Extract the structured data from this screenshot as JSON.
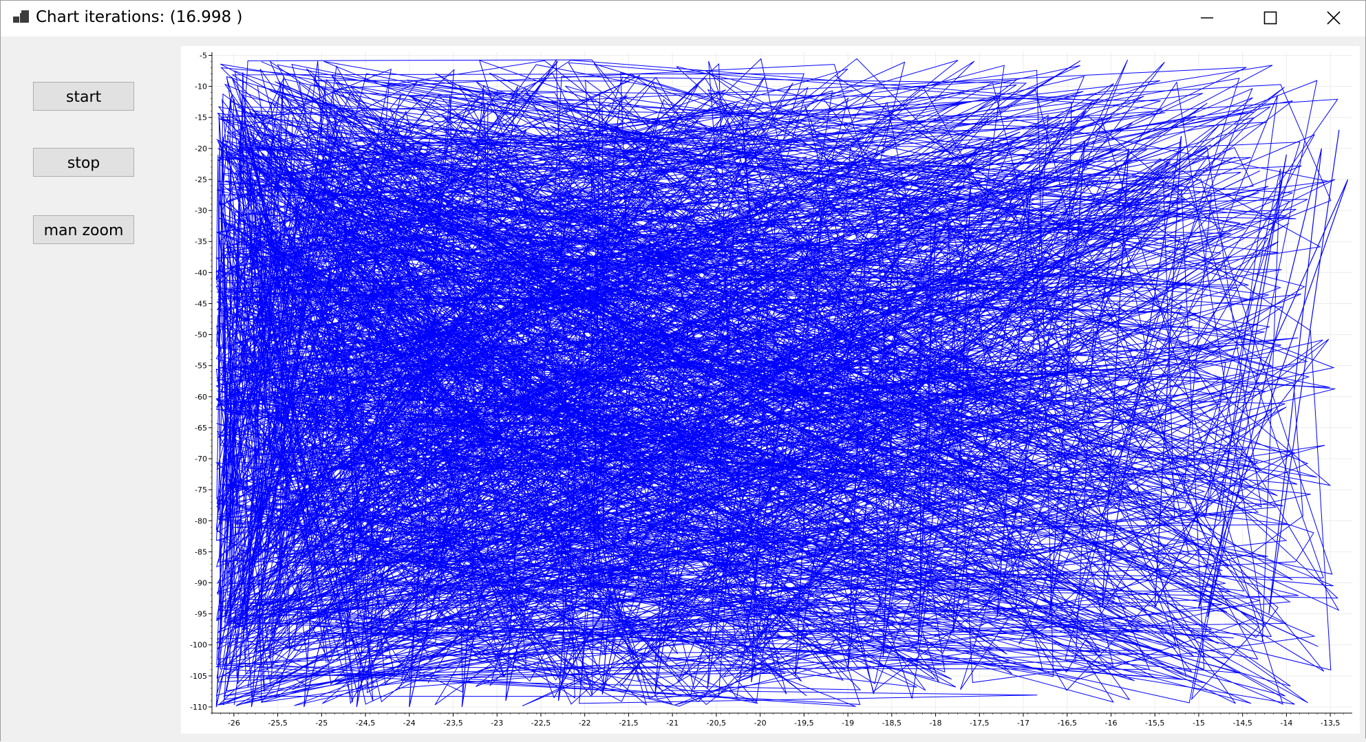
{
  "window": {
    "title": "Chart iterations: (16.998 )",
    "icons": {
      "app": "app-window-icon",
      "minimize": "minimize-icon",
      "maximize": "maximize-icon",
      "close": "close-icon"
    }
  },
  "sidebar": {
    "start_label": "start",
    "stop_label": "stop",
    "zoom_label": "man zoom"
  },
  "chart_data": {
    "type": "line",
    "title": "",
    "xlabel": "",
    "ylabel": "",
    "xlim": [
      -26.25,
      -13.25
    ],
    "ylim": [
      -111,
      -4.5
    ],
    "grid": true,
    "series_color": "#0000ff",
    "x_ticks": [
      -26,
      -25.5,
      -25,
      -24.5,
      -24,
      -23.5,
      -23,
      -22.5,
      -22,
      -21.5,
      -21,
      -20.5,
      -20,
      -19.5,
      -19,
      -18.5,
      -18,
      -17.5,
      -17,
      -16.5,
      -16,
      -15.5,
      -15,
      -14.5,
      -14,
      -13.5
    ],
    "x_tick_labels": [
      "-26",
      "-25,5",
      "-25",
      "-24,5",
      "-24",
      "-23,5",
      "-23",
      "-22,5",
      "-22",
      "-21,5",
      "-21",
      "-20,5",
      "-20",
      "-19,5",
      "-19",
      "-18,5",
      "-18",
      "-17,5",
      "-17",
      "-16,5",
      "-16",
      "-15,5",
      "-15",
      "-14,5",
      "-14",
      "-13,5"
    ],
    "y_ticks": [
      -5,
      -10,
      -15,
      -20,
      -25,
      -30,
      -35,
      -40,
      -45,
      -50,
      -55,
      -60,
      -65,
      -70,
      -75,
      -80,
      -85,
      -90,
      -95,
      -100,
      -105,
      -110
    ],
    "y_tick_labels": [
      "-5",
      "-10",
      "-15",
      "-20",
      "-25",
      "-30",
      "-35",
      "-40",
      "-45",
      "-50",
      "-55",
      "-60",
      "-65",
      "-70",
      "-75",
      "-80",
      "-85",
      "-90",
      "-95",
      "-100",
      "-105",
      "-110"
    ],
    "series": [
      {
        "points": [
          [
            -13.4,
            -17
          ],
          [
            -14.2,
            -95
          ],
          [
            -13.6,
            -20
          ],
          [
            -14.9,
            -95.5
          ],
          [
            -14.0,
            -21
          ],
          [
            -15.0,
            -94
          ],
          [
            -13.3,
            -25
          ],
          [
            -15.5,
            -94
          ],
          [
            -15.2,
            -18
          ],
          [
            -16.1,
            -94
          ],
          [
            -15.8,
            -20
          ],
          [
            -16.7,
            -95
          ],
          [
            -16.3,
            -19
          ],
          [
            -17.3,
            -95.5
          ],
          [
            -16.9,
            -24
          ],
          [
            -17.8,
            -98
          ],
          [
            -17.6,
            -26
          ],
          [
            -18.2,
            -100
          ],
          [
            -18.0,
            -32
          ],
          [
            -18.6,
            -102
          ],
          [
            -18.4,
            -28
          ],
          [
            -19.0,
            -104
          ],
          [
            -18.8,
            -36
          ],
          [
            -19.6,
            -105
          ],
          [
            -19.3,
            -30
          ],
          [
            -20.1,
            -106
          ],
          [
            -19.9,
            -40
          ],
          [
            -20.6,
            -107
          ],
          [
            -20.3,
            -34
          ],
          [
            -21.2,
            -108
          ],
          [
            -20.8,
            -45
          ],
          [
            -21.8,
            -108
          ],
          [
            -21.4,
            -38
          ],
          [
            -22.3,
            -109
          ],
          [
            -22.0,
            -50
          ],
          [
            -22.9,
            -109
          ],
          [
            -22.6,
            -42
          ],
          [
            -23.4,
            -110
          ],
          [
            -23.1,
            -55
          ],
          [
            -24.0,
            -110
          ],
          [
            -23.7,
            -46
          ],
          [
            -24.6,
            -110
          ],
          [
            -24.3,
            -60
          ],
          [
            -25.2,
            -110
          ],
          [
            -24.9,
            -50
          ],
          [
            -25.8,
            -110
          ],
          [
            -25.5,
            -62
          ],
          [
            -26.2,
            -110
          ],
          [
            -26.0,
            -52
          ]
        ]
      }
    ]
  }
}
